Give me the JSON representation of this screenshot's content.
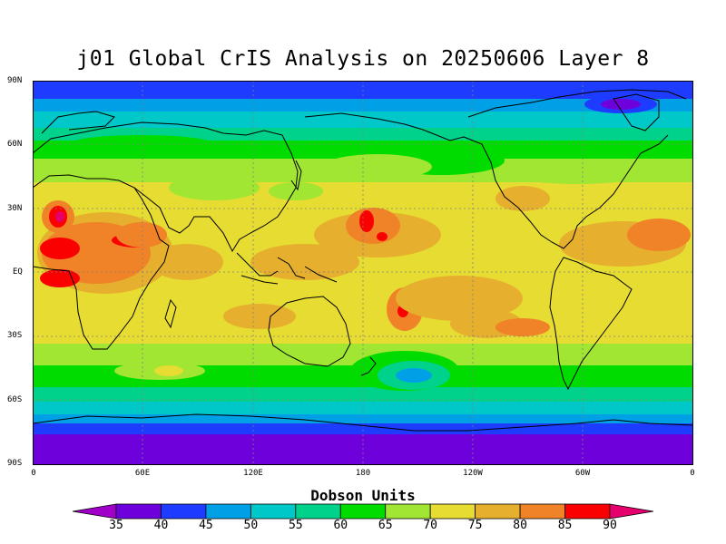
{
  "title": "j01 Global CrIS Analysis on 20250606 Layer 8",
  "lat_labels": [
    "90N",
    "60N",
    "30N",
    "EQ",
    "30S",
    "60S",
    "90S"
  ],
  "lon_labels": [
    "0",
    "60E",
    "120E",
    "180",
    "120W",
    "60W",
    "0"
  ],
  "colorbar": {
    "title": "Dobson Units",
    "levels": [
      "35",
      "40",
      "45",
      "50",
      "55",
      "60",
      "65",
      "70",
      "75",
      "80",
      "85",
      "90"
    ],
    "colors": [
      "#a000c8",
      "#6e00dc",
      "#1e3cff",
      "#00a0e6",
      "#00c8c8",
      "#00d28c",
      "#00dc00",
      "#a0e632",
      "#e6dc32",
      "#e6af2d",
      "#f08228",
      "#fa0000",
      "#e6006e"
    ]
  }
}
